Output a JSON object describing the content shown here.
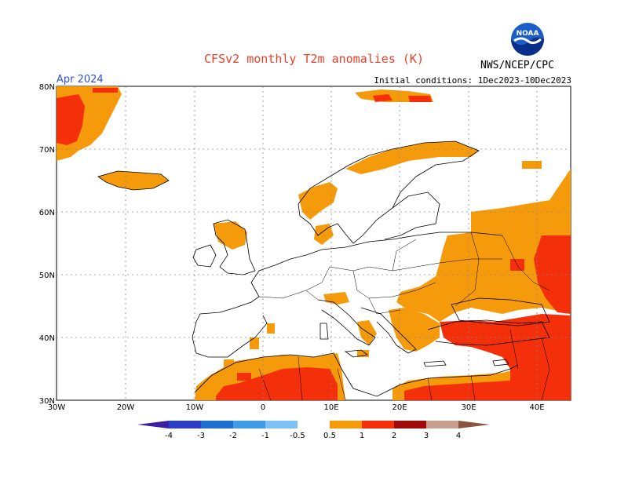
{
  "title": "CFSv2 monthly T2m anomalies (K)",
  "month": "Apr 2024",
  "initial_conditions": "Initial conditions: 1Dec2023-10Dec2023",
  "organization": "NWS/NCEP/CPC",
  "logo_text": "NOAA",
  "latitudes": [
    "80N",
    "70N",
    "60N",
    "50N",
    "40N",
    "30N"
  ],
  "longitudes": [
    "30W",
    "20W",
    "10W",
    "0",
    "10E",
    "20E",
    "30E",
    "40E"
  ],
  "colorbar": {
    "labels": [
      "-4",
      "-3",
      "-2",
      "-1",
      "-0.5",
      "0.5",
      "1",
      "2",
      "3",
      "4"
    ],
    "colors": [
      "#3b1fa6",
      "#2c3fc4",
      "#1f6fd0",
      "#3f9be6",
      "#7fc0f2",
      "#ffffff",
      "#f59a0a",
      "#f4300a",
      "#a00a0a",
      "#c8a090",
      "#8a5540"
    ]
  },
  "anomaly_colors": {
    "warm_light": "#f59a0a",
    "warm_medium": "#f4300a"
  }
}
